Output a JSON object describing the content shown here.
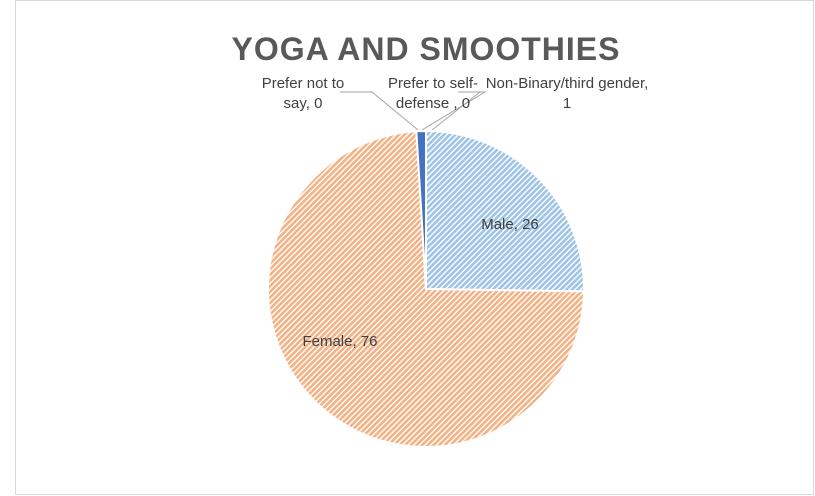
{
  "chart_data": {
    "type": "pie",
    "title": "YOGA AND SMOOTHIES",
    "values": [
      26,
      76,
      1,
      0,
      0
    ],
    "value_labels": [
      "Male, 26",
      "Female, 76",
      "Non-Binary/third gender, 1",
      "Prefer to self-defense , 0",
      "Prefer not to say, 0"
    ],
    "colors": [
      "#9dc3e6",
      "#f4b183",
      "#4472c4",
      "#a9a9a9",
      "#ffc000"
    ],
    "start_angle": 0,
    "direction": "clockwise"
  }
}
